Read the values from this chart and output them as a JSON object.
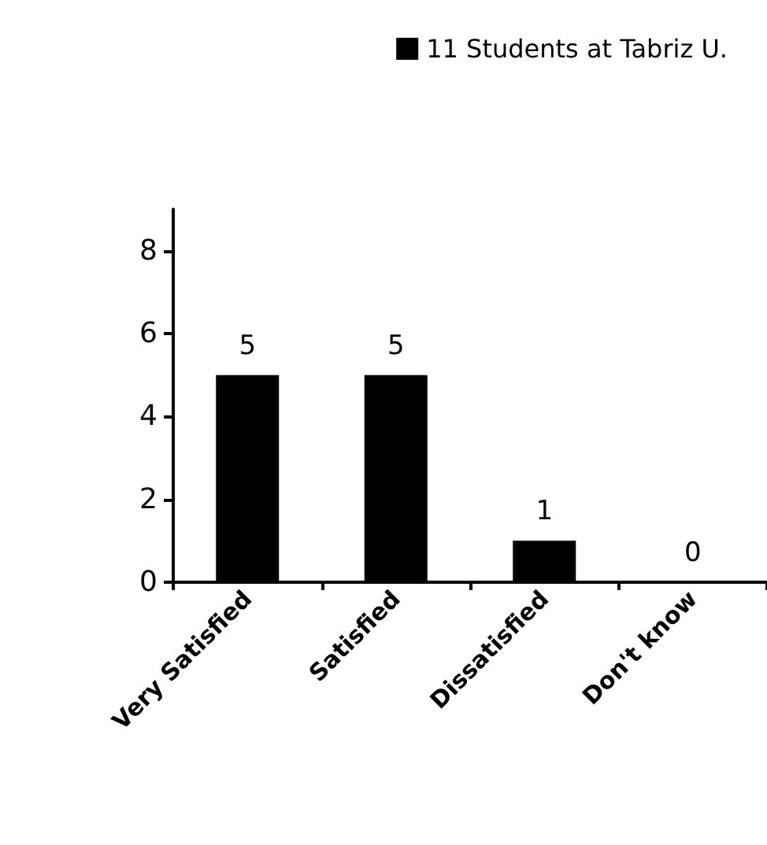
{
  "chart_data": {
    "type": "bar",
    "categories": [
      "Very Satisfied",
      "Satisfied",
      "Dissatisfied",
      "Don't know"
    ],
    "series": [
      {
        "name": "11 Students at Tabriz U.",
        "color": "#000000",
        "values": [
          5,
          5,
          1,
          0
        ]
      }
    ],
    "ylim": [
      0,
      9
    ],
    "yticks": [
      0,
      2,
      4,
      6,
      8
    ],
    "grid": false,
    "legend": "top right",
    "data_labels": true
  }
}
